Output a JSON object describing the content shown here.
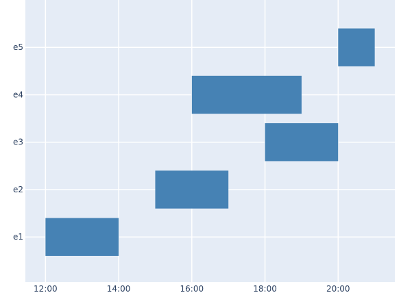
{
  "chart_data": {
    "type": "bar",
    "orientation": "horizontal",
    "subtype": "timeline",
    "title": "",
    "xlabel": "",
    "ylabel": "",
    "categories": [
      "e1",
      "e2",
      "e3",
      "e4",
      "e5"
    ],
    "x_ticks": [
      "12:00",
      "14:00",
      "16:00",
      "18:00",
      "20:00"
    ],
    "xlim": [
      "11:27",
      "21:33"
    ],
    "ylim": [
      0.05,
      6.0
    ],
    "grid": true,
    "legend": "none",
    "colors": {
      "bar": "#4682b4",
      "plot_bg": "#e5ecf6",
      "grid": "#ffffff",
      "tick_text": "#2a3f5f"
    },
    "bars": [
      {
        "category": "e1",
        "start": "12:00",
        "end": "14:00"
      },
      {
        "category": "e2",
        "start": "15:00",
        "end": "17:00"
      },
      {
        "category": "e3",
        "start": "18:00",
        "end": "20:00"
      },
      {
        "category": "e4",
        "start": "16:00",
        "end": "19:00"
      },
      {
        "category": "e5",
        "start": "20:00",
        "end": "21:00"
      }
    ]
  }
}
